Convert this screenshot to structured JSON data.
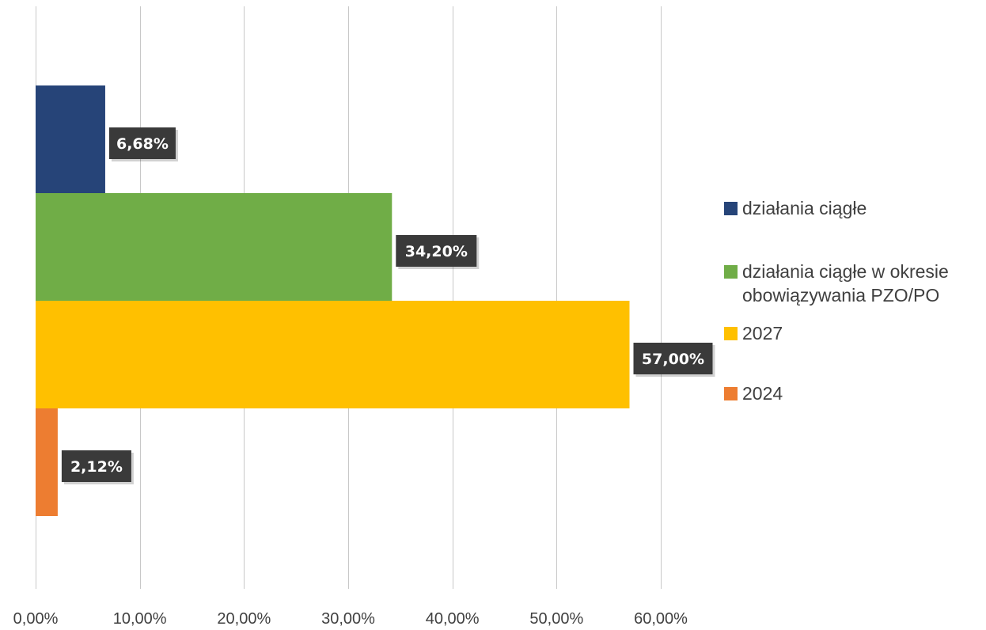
{
  "chart_data": {
    "type": "bar",
    "orientation": "horizontal",
    "series": [
      {
        "name": "działania ciągłe",
        "value": 6.68,
        "label": "6,68%",
        "color": "#264478"
      },
      {
        "name": "działania ciągłe w okresie obowiązywania PZO/PO",
        "value": 34.2,
        "label": "34,20%",
        "color": "#70AD47"
      },
      {
        "name": "2027",
        "value": 57.0,
        "label": "57,00%",
        "color": "#FFC000"
      },
      {
        "name": "2024",
        "value": 2.12,
        "label": "2,12%",
        "color": "#ED7D31"
      }
    ],
    "xlim": [
      0,
      60
    ],
    "x_ticks": [
      0,
      10,
      20,
      30,
      40,
      50,
      60
    ],
    "x_tick_labels": [
      "0,00%",
      "10,00%",
      "20,00%",
      "30,00%",
      "40,00%",
      "50,00%",
      "60,00%"
    ],
    "grid": true,
    "legend_position": "right",
    "data_label_style": {
      "background": "#3a3a3a",
      "text_color": "#ffffff"
    }
  }
}
